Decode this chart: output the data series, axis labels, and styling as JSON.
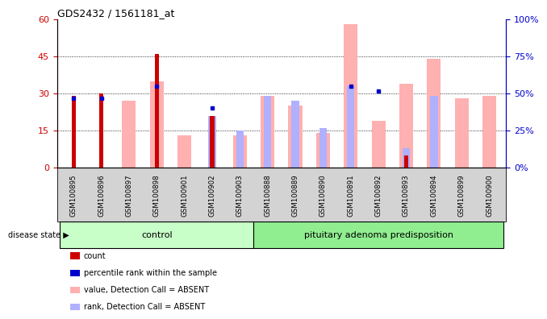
{
  "title": "GDS2432 / 1561181_at",
  "samples": [
    "GSM100895",
    "GSM100896",
    "GSM100897",
    "GSM100898",
    "GSM100901",
    "GSM100902",
    "GSM100903",
    "GSM100888",
    "GSM100889",
    "GSM100890",
    "GSM100891",
    "GSM100892",
    "GSM100893",
    "GSM100894",
    "GSM100899",
    "GSM100900"
  ],
  "groups": [
    "control",
    "control",
    "control",
    "control",
    "control",
    "control",
    "control",
    "pituitary adenoma predisposition",
    "pituitary adenoma predisposition",
    "pituitary adenoma predisposition",
    "pituitary adenoma predisposition",
    "pituitary adenoma predisposition",
    "pituitary adenoma predisposition",
    "pituitary adenoma predisposition",
    "pituitary adenoma predisposition",
    "pituitary adenoma predisposition"
  ],
  "count_values": [
    29,
    30,
    null,
    46,
    null,
    21,
    null,
    null,
    null,
    null,
    null,
    null,
    5,
    null,
    null,
    null
  ],
  "percentile_values": [
    28,
    28,
    null,
    33,
    null,
    24,
    null,
    null,
    null,
    null,
    33,
    31,
    null,
    null,
    null,
    null
  ],
  "absent_value_bars": [
    null,
    null,
    27,
    35,
    13,
    null,
    13,
    29,
    25,
    14,
    58,
    19,
    34,
    44,
    28,
    29
  ],
  "absent_rank_bars": [
    null,
    null,
    null,
    null,
    null,
    21,
    15,
    29,
    27,
    16,
    33,
    null,
    8,
    29,
    null,
    null
  ],
  "ylim_left": [
    0,
    60
  ],
  "ylim_right": [
    0,
    100
  ],
  "yticks_left": [
    0,
    15,
    30,
    45,
    60
  ],
  "yticks_right": [
    0,
    25,
    50,
    75,
    100
  ],
  "ytick_labels_left": [
    "0",
    "15",
    "30",
    "45",
    "60"
  ],
  "ytick_labels_right": [
    "0%",
    "25%",
    "50%",
    "75%",
    "100%"
  ],
  "color_count": "#cc0000",
  "color_percentile": "#0000cc",
  "color_absent_value": "#ffb0b0",
  "color_absent_rank": "#b0b0ff",
  "color_control_bg": "#c8ffc8",
  "color_pituitary_bg": "#90ee90",
  "color_xticklabels_bg": "#d3d3d3",
  "disease_state_label": "disease state",
  "control_label": "control",
  "pituitary_label": "pituitary adenoma predisposition",
  "legend_items": [
    "count",
    "percentile rank within the sample",
    "value, Detection Call = ABSENT",
    "rank, Detection Call = ABSENT"
  ],
  "legend_colors": [
    "#cc0000",
    "#0000cc",
    "#ffb0b0",
    "#b0b0ff"
  ],
  "n_control": 7,
  "n_pituitary": 9
}
